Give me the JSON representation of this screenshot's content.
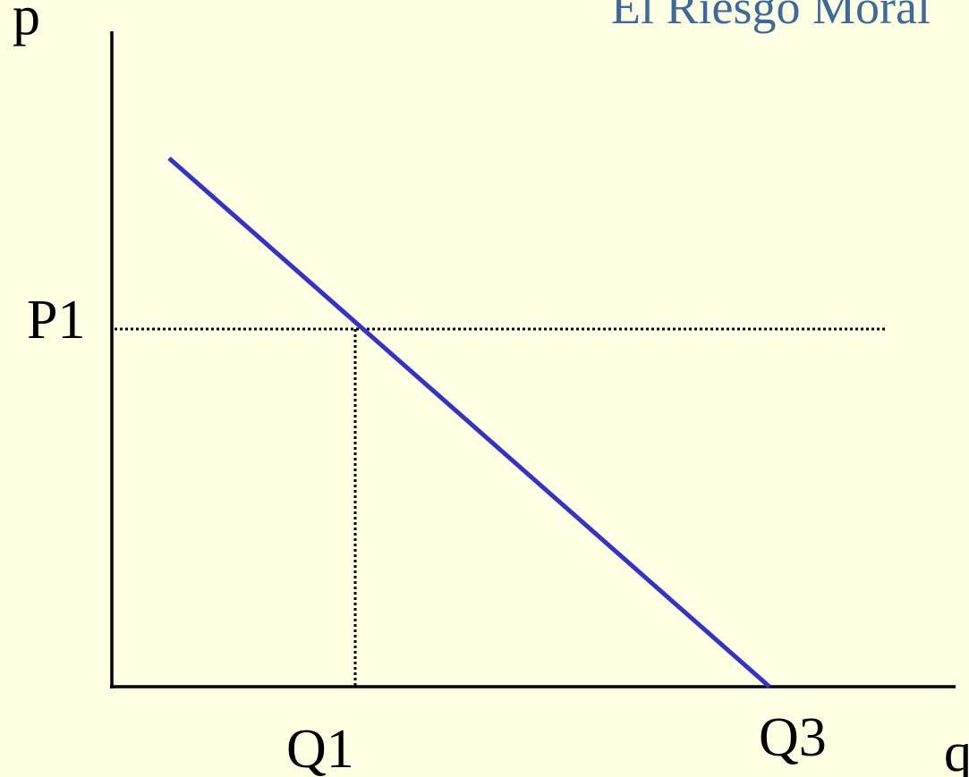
{
  "title": "El Riesgo Moral",
  "axes": {
    "y_label": "p",
    "x_label": "q"
  },
  "labels": {
    "price": "P1",
    "quantity_1": "Q1",
    "quantity_3": "Q3"
  }
}
